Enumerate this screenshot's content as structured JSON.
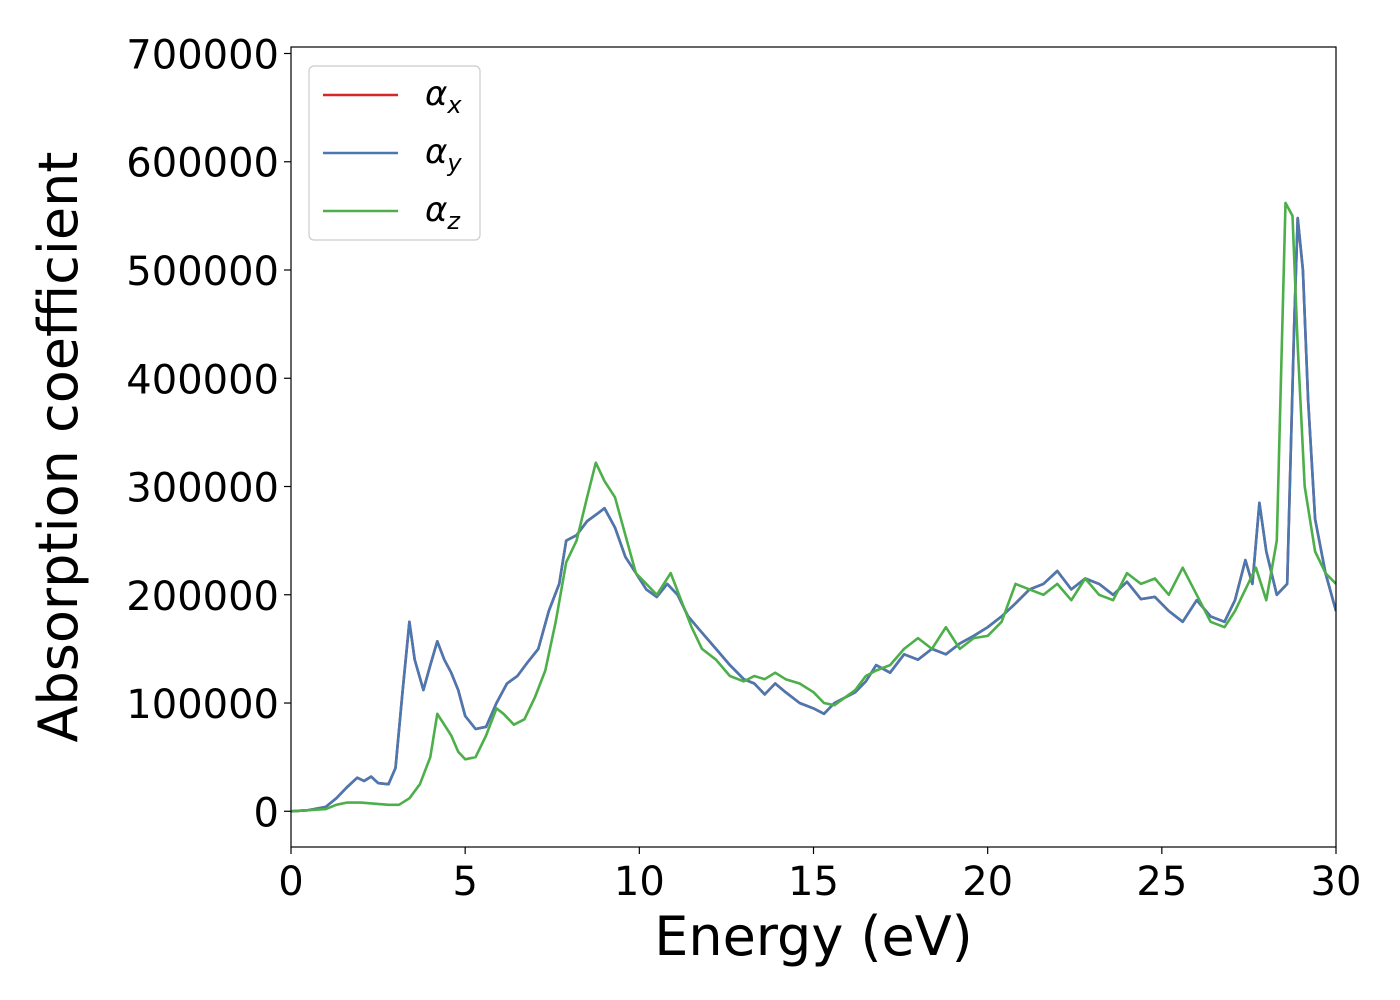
{
  "chart_data": {
    "type": "line",
    "xlabel": "Energy (eV)",
    "ylabel": "Absorption coefficient",
    "xlim": [
      0,
      30
    ],
    "ylim": [
      -33000,
      706000
    ],
    "xticks": [
      0,
      5,
      10,
      15,
      20,
      25,
      30
    ],
    "xtick_labels": [
      "0",
      "5",
      "10",
      "15",
      "20",
      "25",
      "30"
    ],
    "yticks": [
      0,
      100000,
      200000,
      300000,
      400000,
      500000,
      600000,
      700000
    ],
    "ytick_labels": [
      "0",
      "100000",
      "200000",
      "300000",
      "400000",
      "500000",
      "600000",
      "700000"
    ],
    "grid": false,
    "legend_position": "top-left",
    "series": [
      {
        "name": "α",
        "subscript": "x",
        "color": "#d62728",
        "x": [
          0,
          0.5,
          1.0,
          1.3,
          1.6,
          1.9,
          2.1,
          2.3,
          2.5,
          2.8,
          3.0,
          3.2,
          3.4,
          3.55,
          3.8,
          4.0,
          4.2,
          4.4,
          4.6,
          4.8,
          5.0,
          5.3,
          5.6,
          5.9,
          6.2,
          6.5,
          6.8,
          7.1,
          7.4,
          7.7,
          7.9,
          8.2,
          8.5,
          8.8,
          9.0,
          9.3,
          9.6,
          9.9,
          10.2,
          10.5,
          10.8,
          11.1,
          11.4,
          11.8,
          12.2,
          12.6,
          13.0,
          13.3,
          13.6,
          13.9,
          14.2,
          14.6,
          15.0,
          15.3,
          15.6,
          15.9,
          16.2,
          16.5,
          16.8,
          17.2,
          17.6,
          18.0,
          18.4,
          18.8,
          19.2,
          19.6,
          20.0,
          20.4,
          20.8,
          21.2,
          21.6,
          22.0,
          22.4,
          22.8,
          23.2,
          23.6,
          24.0,
          24.4,
          24.8,
          25.2,
          25.6,
          26.0,
          26.4,
          26.8,
          27.1,
          27.4,
          27.6,
          27.8,
          28.0,
          28.3,
          28.6,
          28.8,
          28.9,
          29.05,
          29.2,
          29.4,
          29.7,
          30.0
        ],
        "values": [
          0,
          1000,
          4000,
          12000,
          22000,
          31000,
          28000,
          32000,
          26000,
          25000,
          40000,
          110000,
          175000,
          140000,
          112000,
          135000,
          157000,
          140000,
          128000,
          112000,
          88000,
          76000,
          78000,
          100000,
          118000,
          125000,
          138000,
          150000,
          185000,
          210000,
          250000,
          255000,
          268000,
          275000,
          280000,
          262000,
          235000,
          220000,
          205000,
          198000,
          210000,
          200000,
          180000,
          165000,
          150000,
          135000,
          122000,
          118000,
          108000,
          118000,
          110000,
          100000,
          95000,
          90000,
          100000,
          105000,
          110000,
          120000,
          135000,
          128000,
          145000,
          140000,
          150000,
          145000,
          155000,
          162000,
          170000,
          180000,
          192000,
          205000,
          210000,
          222000,
          205000,
          215000,
          210000,
          200000,
          212000,
          196000,
          198000,
          185000,
          175000,
          195000,
          180000,
          175000,
          195000,
          232000,
          210000,
          285000,
          240000,
          200000,
          210000,
          450000,
          548000,
          500000,
          380000,
          270000,
          220000,
          185000
        ]
      },
      {
        "name": "α",
        "subscript": "y",
        "color": "#4a78b0",
        "x": [
          0,
          0.5,
          1.0,
          1.3,
          1.6,
          1.9,
          2.1,
          2.3,
          2.5,
          2.8,
          3.0,
          3.2,
          3.4,
          3.55,
          3.8,
          4.0,
          4.2,
          4.4,
          4.6,
          4.8,
          5.0,
          5.3,
          5.6,
          5.9,
          6.2,
          6.5,
          6.8,
          7.1,
          7.4,
          7.7,
          7.9,
          8.2,
          8.5,
          8.8,
          9.0,
          9.3,
          9.6,
          9.9,
          10.2,
          10.5,
          10.8,
          11.1,
          11.4,
          11.8,
          12.2,
          12.6,
          13.0,
          13.3,
          13.6,
          13.9,
          14.2,
          14.6,
          15.0,
          15.3,
          15.6,
          15.9,
          16.2,
          16.5,
          16.8,
          17.2,
          17.6,
          18.0,
          18.4,
          18.8,
          19.2,
          19.6,
          20.0,
          20.4,
          20.8,
          21.2,
          21.6,
          22.0,
          22.4,
          22.8,
          23.2,
          23.6,
          24.0,
          24.4,
          24.8,
          25.2,
          25.6,
          26.0,
          26.4,
          26.8,
          27.1,
          27.4,
          27.6,
          27.8,
          28.0,
          28.3,
          28.6,
          28.8,
          28.9,
          29.05,
          29.2,
          29.4,
          29.7,
          30.0
        ],
        "values": [
          0,
          1000,
          4000,
          12000,
          22000,
          31000,
          28000,
          32000,
          26000,
          25000,
          40000,
          110000,
          175000,
          140000,
          112000,
          135000,
          157000,
          140000,
          128000,
          112000,
          88000,
          76000,
          78000,
          100000,
          118000,
          125000,
          138000,
          150000,
          185000,
          210000,
          250000,
          255000,
          268000,
          275000,
          280000,
          262000,
          235000,
          220000,
          205000,
          198000,
          210000,
          200000,
          180000,
          165000,
          150000,
          135000,
          122000,
          118000,
          108000,
          118000,
          110000,
          100000,
          95000,
          90000,
          100000,
          105000,
          110000,
          120000,
          135000,
          128000,
          145000,
          140000,
          150000,
          145000,
          155000,
          162000,
          170000,
          180000,
          192000,
          205000,
          210000,
          222000,
          205000,
          215000,
          210000,
          200000,
          212000,
          196000,
          198000,
          185000,
          175000,
          195000,
          180000,
          175000,
          195000,
          232000,
          210000,
          285000,
          240000,
          200000,
          210000,
          450000,
          548000,
          500000,
          380000,
          270000,
          220000,
          185000
        ]
      },
      {
        "name": "α",
        "subscript": "z",
        "color": "#4daf4a",
        "x": [
          0,
          0.5,
          1.0,
          1.3,
          1.6,
          2.0,
          2.4,
          2.8,
          3.1,
          3.4,
          3.7,
          4.0,
          4.2,
          4.4,
          4.6,
          4.8,
          5.0,
          5.3,
          5.6,
          5.9,
          6.1,
          6.4,
          6.7,
          7.0,
          7.3,
          7.6,
          7.9,
          8.2,
          8.5,
          8.75,
          9.0,
          9.3,
          9.6,
          9.9,
          10.2,
          10.5,
          10.9,
          11.2,
          11.5,
          11.8,
          12.2,
          12.6,
          13.0,
          13.3,
          13.6,
          13.9,
          14.2,
          14.6,
          15.0,
          15.3,
          15.6,
          15.9,
          16.2,
          16.5,
          16.8,
          17.2,
          17.6,
          18.0,
          18.4,
          18.8,
          19.2,
          19.6,
          20.0,
          20.4,
          20.8,
          21.2,
          21.6,
          22.0,
          22.4,
          22.8,
          23.2,
          23.6,
          24.0,
          24.4,
          24.8,
          25.2,
          25.6,
          26.0,
          26.4,
          26.8,
          27.1,
          27.4,
          27.7,
          28.0,
          28.3,
          28.55,
          28.75,
          28.9,
          29.1,
          29.4,
          29.7,
          30.0
        ],
        "values": [
          0,
          1000,
          2000,
          6000,
          8000,
          8000,
          7000,
          6000,
          6000,
          12000,
          25000,
          50000,
          90000,
          80000,
          70000,
          55000,
          48000,
          50000,
          70000,
          95000,
          90000,
          80000,
          85000,
          105000,
          130000,
          175000,
          230000,
          250000,
          290000,
          322000,
          305000,
          290000,
          255000,
          220000,
          210000,
          200000,
          220000,
          195000,
          170000,
          150000,
          140000,
          125000,
          120000,
          125000,
          122000,
          128000,
          122000,
          118000,
          110000,
          100000,
          98000,
          105000,
          112000,
          125000,
          130000,
          135000,
          150000,
          160000,
          150000,
          170000,
          150000,
          160000,
          162000,
          175000,
          210000,
          205000,
          200000,
          210000,
          195000,
          215000,
          200000,
          195000,
          220000,
          210000,
          215000,
          200000,
          225000,
          200000,
          175000,
          170000,
          185000,
          205000,
          225000,
          195000,
          250000,
          562000,
          550000,
          430000,
          300000,
          240000,
          220000,
          210000
        ]
      }
    ]
  }
}
